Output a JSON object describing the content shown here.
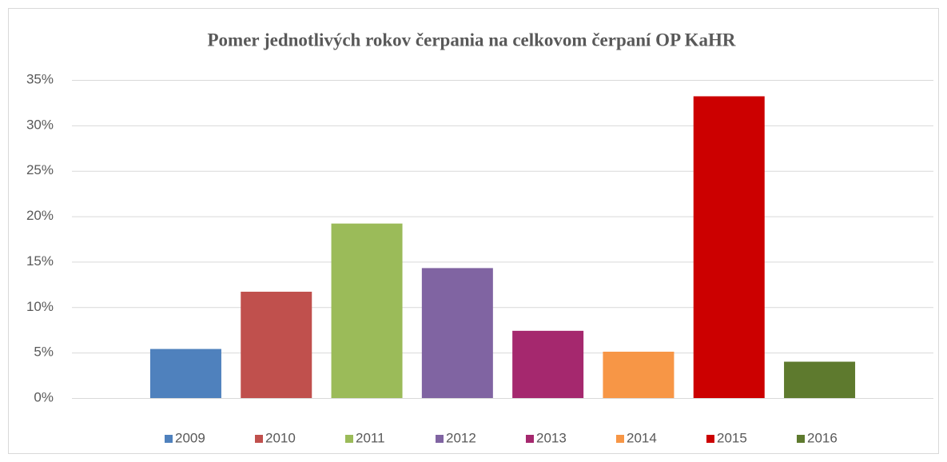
{
  "chart_data": {
    "type": "bar",
    "title": "Pomer jednotlivých rokov čerpania na celkovom čerpaní OP KaHR",
    "series": [
      {
        "name": "2009",
        "color": "#4f81bd",
        "values": [
          5.4
        ]
      },
      {
        "name": "2010",
        "color": "#c0504d",
        "values": [
          11.7
        ]
      },
      {
        "name": "2011",
        "color": "#9bbb59",
        "values": [
          19.2
        ]
      },
      {
        "name": "2012",
        "color": "#8064a2",
        "values": [
          14.3
        ]
      },
      {
        "name": "2013",
        "color": "#a5286e",
        "values": [
          7.4
        ]
      },
      {
        "name": "2014",
        "color": "#f79646",
        "values": [
          5.1
        ]
      },
      {
        "name": "2015",
        "color": "#cc0000",
        "values": [
          33.2
        ]
      },
      {
        "name": "2016",
        "color": "#5e7a2e",
        "values": [
          4.0
        ]
      }
    ],
    "ylim": [
      0,
      35
    ],
    "yticks": [
      {
        "value": 0,
        "label": "0%"
      },
      {
        "value": 5,
        "label": "5%"
      },
      {
        "value": 10,
        "label": "10%"
      },
      {
        "value": 15,
        "label": "15%"
      },
      {
        "value": 20,
        "label": "20%"
      },
      {
        "value": 25,
        "label": "25%"
      },
      {
        "value": 30,
        "label": "30%"
      },
      {
        "value": 35,
        "label": "35%"
      }
    ],
    "grid": true,
    "legend": "bottom"
  }
}
